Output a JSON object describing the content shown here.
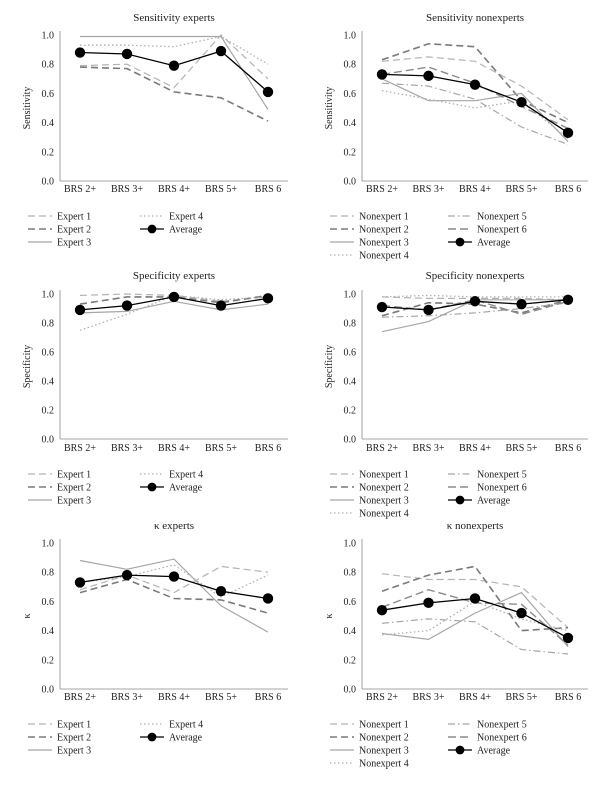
{
  "chart_data": [
    {
      "type": "line",
      "title": "Sensitivity experts",
      "ylabel": "Sensitivity",
      "categories": [
        "BRS 2+",
        "BRS 3+",
        "BRS 4+",
        "BRS 5+",
        "BRS 6"
      ],
      "yticks": [
        "0.0",
        "0.2",
        "0.4",
        "0.6",
        "0.8",
        "1.0"
      ],
      "ylim": [
        0,
        1
      ],
      "series": [
        {
          "name": "Expert 1",
          "style": "dash-light",
          "values": [
            0.79,
            0.8,
            0.64,
            1.0,
            0.7
          ]
        },
        {
          "name": "Expert 2",
          "style": "dash-dark",
          "values": [
            0.78,
            0.77,
            0.61,
            0.57,
            0.41
          ]
        },
        {
          "name": "Expert 3",
          "style": "solid",
          "values": [
            0.99,
            0.99,
            0.99,
            0.99,
            0.49
          ]
        },
        {
          "name": "Expert 4",
          "style": "dot",
          "values": [
            0.93,
            0.93,
            0.92,
            0.99,
            0.8
          ]
        },
        {
          "name": "Average",
          "style": "marker",
          "values": [
            0.88,
            0.87,
            0.79,
            0.89,
            0.61
          ]
        }
      ],
      "legend_layout": "left"
    },
    {
      "type": "line",
      "title": "Sensitivity nonexperts",
      "ylabel": "Sensitivity",
      "categories": [
        "BRS 2+",
        "BRS 3+",
        "BRS 4+",
        "BRS 5+",
        "BRS 6"
      ],
      "yticks": [
        "0.0",
        "0.2",
        "0.4",
        "0.6",
        "0.8",
        "1.0"
      ],
      "ylim": [
        0,
        1
      ],
      "series": [
        {
          "name": "Nonexpert 1",
          "style": "dash-light",
          "values": [
            0.82,
            0.85,
            0.82,
            0.65,
            0.42
          ]
        },
        {
          "name": "Nonexpert 2",
          "style": "dash-dark",
          "values": [
            0.83,
            0.94,
            0.92,
            0.55,
            0.4
          ]
        },
        {
          "name": "Nonexpert 3",
          "style": "solid",
          "values": [
            0.7,
            0.55,
            0.55,
            0.6,
            0.27
          ]
        },
        {
          "name": "Nonexpert 4",
          "style": "dot",
          "values": [
            0.62,
            0.56,
            0.5,
            0.55,
            0.29
          ]
        },
        {
          "name": "Nonexpert 5",
          "style": "dashdot",
          "values": [
            0.67,
            0.65,
            0.56,
            0.37,
            0.25
          ]
        },
        {
          "name": "Nonexpert 6",
          "style": "dash-mid",
          "values": [
            0.73,
            0.78,
            0.67,
            0.51,
            0.36
          ]
        },
        {
          "name": "Average",
          "style": "marker",
          "values": [
            0.73,
            0.72,
            0.66,
            0.54,
            0.33
          ]
        }
      ],
      "legend_layout": "right"
    },
    {
      "type": "line",
      "title": "Specificity experts",
      "ylabel": "Specificity",
      "categories": [
        "BRS 2+",
        "BRS 3+",
        "BRS 4+",
        "BRS 5+",
        "BRS 6"
      ],
      "yticks": [
        "0.0",
        "0.2",
        "0.4",
        "0.6",
        "0.8",
        "1.0"
      ],
      "ylim": [
        0,
        1
      ],
      "series": [
        {
          "name": "Expert 1",
          "style": "dash-light",
          "values": [
            0.99,
            1.0,
            0.99,
            0.95,
            0.98
          ]
        },
        {
          "name": "Expert 2",
          "style": "dash-dark",
          "values": [
            0.93,
            0.98,
            0.98,
            0.94,
            0.99
          ]
        },
        {
          "name": "Expert 3",
          "style": "solid",
          "values": [
            0.87,
            0.88,
            0.95,
            0.89,
            0.93
          ]
        },
        {
          "name": "Expert 4",
          "style": "dot",
          "values": [
            0.75,
            0.86,
            0.99,
            0.96,
            0.98
          ]
        },
        {
          "name": "Average",
          "style": "marker",
          "values": [
            0.89,
            0.92,
            0.98,
            0.92,
            0.97
          ]
        }
      ],
      "legend_layout": "left"
    },
    {
      "type": "line",
      "title": "Specificity nonexperts",
      "ylabel": "Specificity",
      "categories": [
        "BRS 2+",
        "BRS 3+",
        "BRS 4+",
        "BRS 5+",
        "BRS 6"
      ],
      "yticks": [
        "0.0",
        "0.2",
        "0.4",
        "0.6",
        "0.8",
        "1.0"
      ],
      "ylim": [
        0,
        1
      ],
      "series": [
        {
          "name": "Nonexpert 1",
          "style": "dash-light",
          "values": [
            0.98,
            0.97,
            0.97,
            0.97,
            0.96
          ]
        },
        {
          "name": "Nonexpert 2",
          "style": "dash-dark",
          "values": [
            0.85,
            0.94,
            0.93,
            0.87,
            0.96
          ]
        },
        {
          "name": "Nonexpert 3",
          "style": "solid",
          "values": [
            0.74,
            0.81,
            0.96,
            0.96,
            0.96
          ]
        },
        {
          "name": "Nonexpert 4",
          "style": "dot",
          "values": [
            0.98,
            0.99,
            0.98,
            0.98,
            0.98
          ]
        },
        {
          "name": "Nonexpert 5",
          "style": "dashdot",
          "values": [
            0.84,
            0.85,
            0.87,
            0.9,
            0.94
          ]
        },
        {
          "name": "Nonexpert 6",
          "style": "dash-mid",
          "values": [
            0.92,
            0.89,
            0.96,
            0.86,
            0.95
          ]
        },
        {
          "name": "Average",
          "style": "marker",
          "values": [
            0.91,
            0.89,
            0.95,
            0.93,
            0.96
          ]
        }
      ],
      "legend_layout": "right"
    },
    {
      "type": "line",
      "title": "κ experts",
      "ylabel": "κ",
      "categories": [
        "BRS 2+",
        "BRS 3+",
        "BRS 4+",
        "BRS 5+",
        "BRS 6"
      ],
      "yticks": [
        "0.0",
        "0.2",
        "0.4",
        "0.6",
        "0.8",
        "1.0"
      ],
      "ylim": [
        0,
        1
      ],
      "series": [
        {
          "name": "Expert 1",
          "style": "dash-light",
          "values": [
            0.68,
            0.78,
            0.66,
            0.84,
            0.8
          ]
        },
        {
          "name": "Expert 2",
          "style": "dash-dark",
          "values": [
            0.66,
            0.75,
            0.62,
            0.61,
            0.52
          ]
        },
        {
          "name": "Expert 3",
          "style": "solid",
          "values": [
            0.88,
            0.82,
            0.89,
            0.57,
            0.39
          ]
        },
        {
          "name": "Expert 4",
          "style": "dot",
          "values": [
            0.73,
            0.77,
            0.85,
            0.63,
            0.78
          ]
        },
        {
          "name": "Average",
          "style": "marker",
          "values": [
            0.73,
            0.78,
            0.77,
            0.67,
            0.62
          ]
        }
      ],
      "legend_layout": "left"
    },
    {
      "type": "line",
      "title": "κ nonexperts",
      "ylabel": "κ",
      "categories": [
        "BRS 2+",
        "BRS 3+",
        "BRS 4+",
        "BRS 5+",
        "BRS 6"
      ],
      "yticks": [
        "0.0",
        "0.2",
        "0.4",
        "0.6",
        "0.8",
        "1.0"
      ],
      "ylim": [
        0,
        1
      ],
      "series": [
        {
          "name": "Nonexpert 1",
          "style": "dash-light",
          "values": [
            0.79,
            0.75,
            0.75,
            0.7,
            0.42
          ]
        },
        {
          "name": "Nonexpert 2",
          "style": "dash-dark",
          "values": [
            0.67,
            0.78,
            0.84,
            0.4,
            0.42
          ]
        },
        {
          "name": "Nonexpert 3",
          "style": "solid",
          "values": [
            0.38,
            0.34,
            0.52,
            0.66,
            0.29
          ]
        },
        {
          "name": "Nonexpert 4",
          "style": "dot",
          "values": [
            0.37,
            0.4,
            0.6,
            0.48,
            0.4
          ]
        },
        {
          "name": "Nonexpert 5",
          "style": "dashdot",
          "values": [
            0.45,
            0.48,
            0.46,
            0.27,
            0.24
          ]
        },
        {
          "name": "Nonexpert 6",
          "style": "dash-mid",
          "values": [
            0.56,
            0.68,
            0.59,
            0.58,
            0.3
          ]
        },
        {
          "name": "Average",
          "style": "marker",
          "values": [
            0.54,
            0.59,
            0.62,
            0.52,
            0.35
          ]
        }
      ],
      "legend_layout": "right"
    }
  ]
}
